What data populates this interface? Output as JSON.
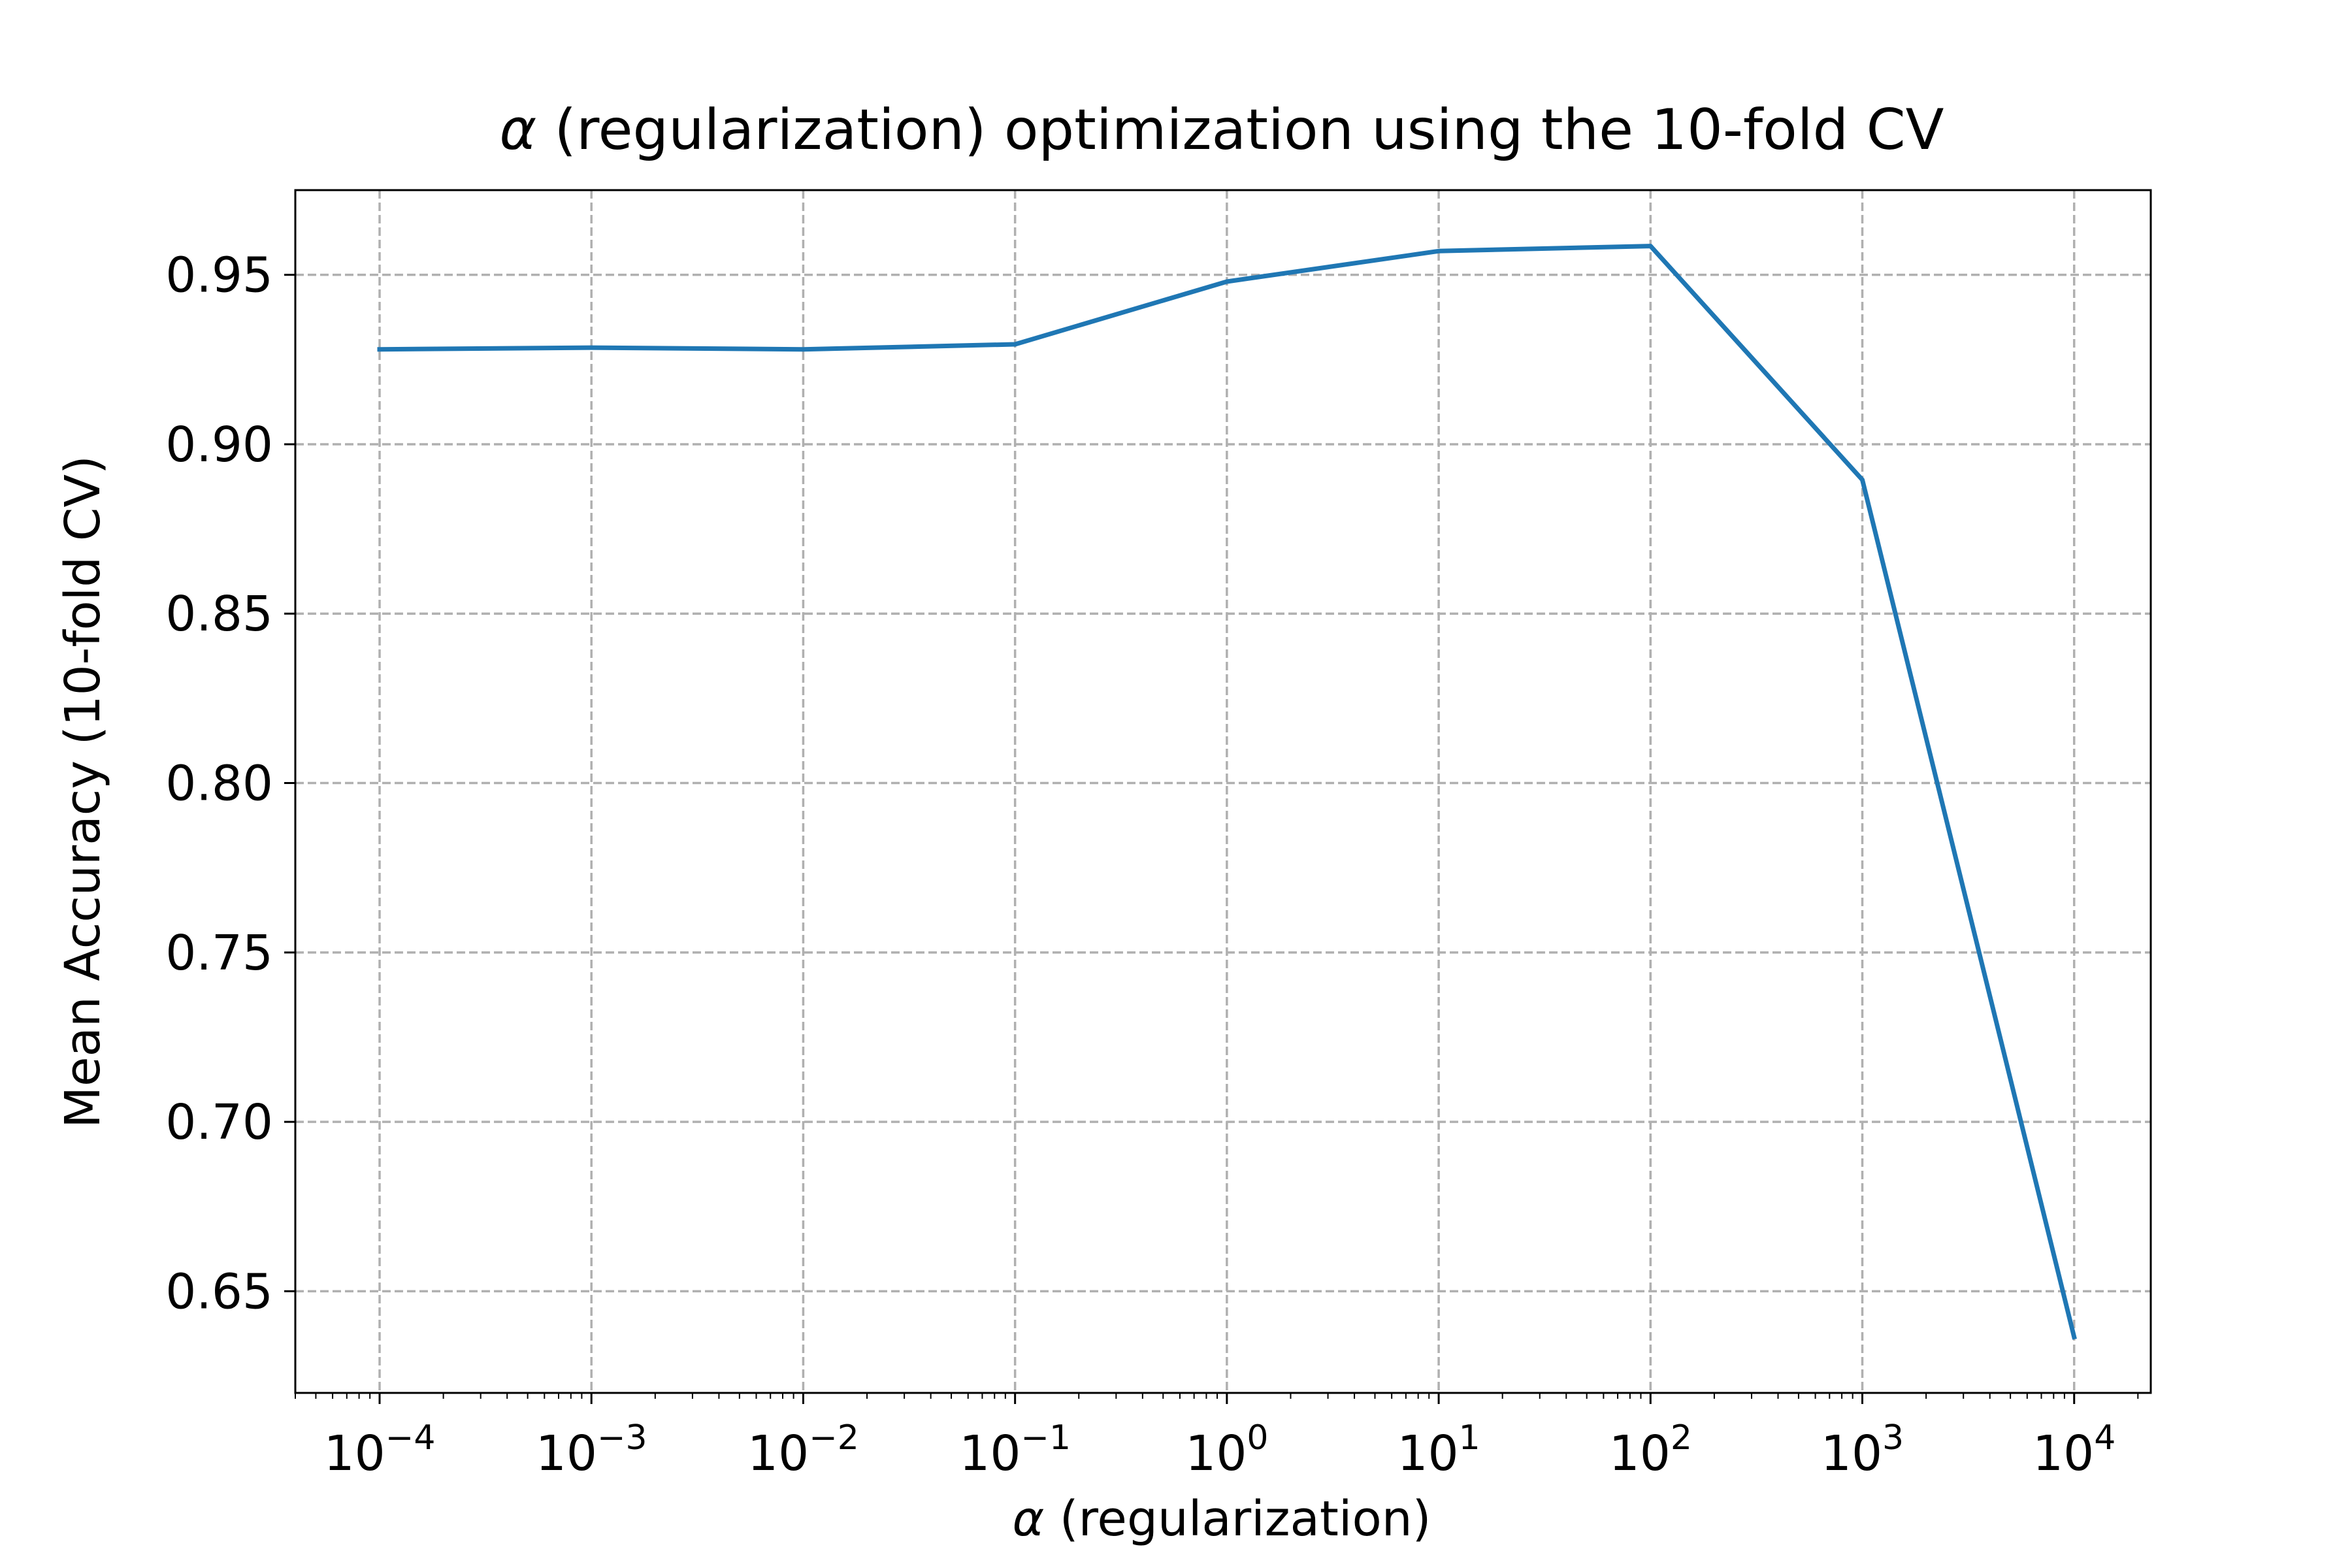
{
  "chart_data": {
    "type": "line",
    "title_symbol": "α",
    "title_rest": " (regularization) optimization using the 10-fold CV",
    "xlabel_symbol": "α",
    "xlabel_rest": " (regularization)",
    "ylabel": "Mean Accuracy (10-fold CV)",
    "x_scale": "log",
    "xlim": [
      4e-05,
      23000
    ],
    "ylim": [
      0.62,
      0.975
    ],
    "grid": true,
    "line_color": "#1f77b4",
    "x_ticks": [
      {
        "value": 0.0001,
        "base": "10",
        "exp": "−4"
      },
      {
        "value": 0.001,
        "base": "10",
        "exp": "−3"
      },
      {
        "value": 0.01,
        "base": "10",
        "exp": "−2"
      },
      {
        "value": 0.1,
        "base": "10",
        "exp": "−1"
      },
      {
        "value": 1,
        "base": "10",
        "exp": "0"
      },
      {
        "value": 10,
        "base": "10",
        "exp": "1"
      },
      {
        "value": 100,
        "base": "10",
        "exp": "2"
      },
      {
        "value": 1000,
        "base": "10",
        "exp": "3"
      },
      {
        "value": 10000,
        "base": "10",
        "exp": "4"
      }
    ],
    "y_ticks": [
      {
        "value": 0.65,
        "label": "0.65"
      },
      {
        "value": 0.7,
        "label": "0.70"
      },
      {
        "value": 0.75,
        "label": "0.75"
      },
      {
        "value": 0.8,
        "label": "0.80"
      },
      {
        "value": 0.85,
        "label": "0.85"
      },
      {
        "value": 0.9,
        "label": "0.90"
      },
      {
        "value": 0.95,
        "label": "0.95"
      }
    ],
    "series": [
      {
        "x": [
          0.0001,
          0.001,
          0.01,
          0.1,
          1,
          10,
          100,
          1000,
          10000
        ],
        "y": [
          0.928,
          0.9285,
          0.928,
          0.9295,
          0.948,
          0.957,
          0.9585,
          0.8895,
          0.6365
        ]
      }
    ]
  }
}
